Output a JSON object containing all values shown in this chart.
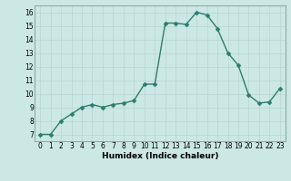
{
  "x": [
    0,
    1,
    2,
    3,
    4,
    5,
    6,
    7,
    8,
    9,
    10,
    11,
    12,
    13,
    14,
    15,
    16,
    17,
    18,
    19,
    20,
    21,
    22,
    23
  ],
  "y": [
    7.0,
    7.0,
    8.0,
    8.5,
    9.0,
    9.2,
    9.0,
    9.2,
    9.3,
    9.5,
    10.7,
    10.7,
    15.2,
    15.2,
    15.1,
    16.0,
    15.8,
    14.8,
    13.0,
    12.1,
    9.9,
    9.3,
    9.4,
    10.4
  ],
  "line_color": "#2d7d6e",
  "marker_color": "#2d7d6e",
  "bg_color": "#cce8e4",
  "grid_color": "#b8d4d0",
  "border_color": "#8aada8",
  "xlabel": "Humidex (Indice chaleur)",
  "ylim": [
    6.5,
    16.5
  ],
  "xlim": [
    -0.5,
    23.5
  ],
  "yticks": [
    7,
    8,
    9,
    10,
    11,
    12,
    13,
    14,
    15,
    16
  ],
  "xtick_labels": [
    "0",
    "1",
    "2",
    "3",
    "4",
    "5",
    "6",
    "7",
    "8",
    "9",
    "10",
    "11",
    "12",
    "13",
    "14",
    "15",
    "16",
    "17",
    "18",
    "19",
    "20",
    "21",
    "22",
    "23"
  ],
  "xlabel_fontsize": 6.5,
  "tick_fontsize": 5.5,
  "line_width": 1.0,
  "marker_size": 2.5,
  "marker_style": "D"
}
